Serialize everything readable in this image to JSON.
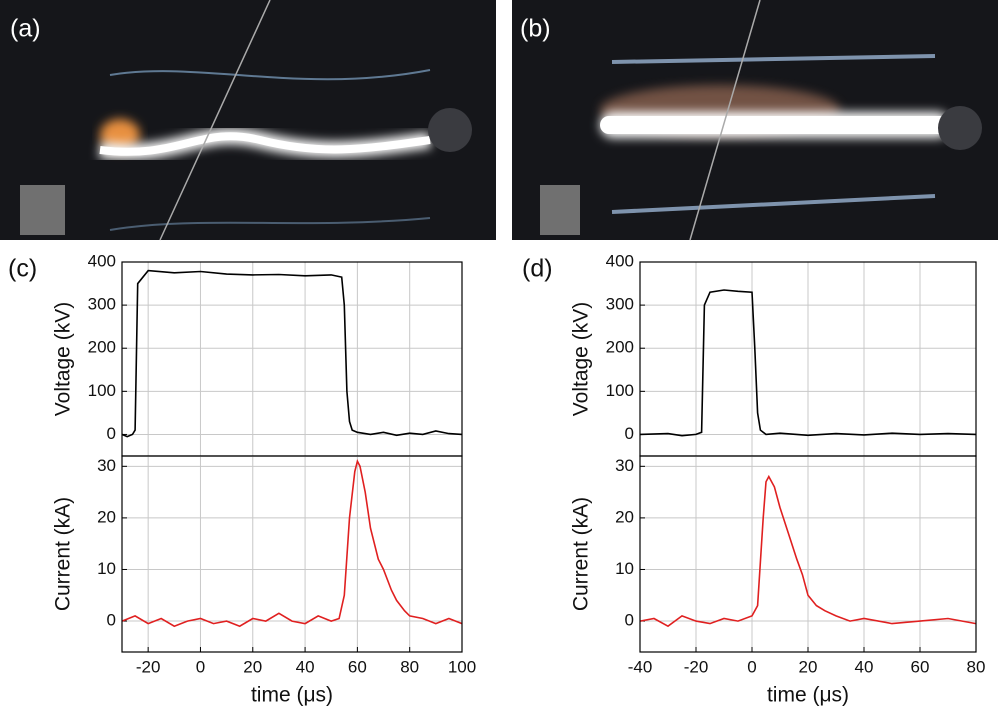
{
  "photos": [
    {
      "label": "(a)"
    },
    {
      "label": "(b)"
    }
  ],
  "chart_data": [
    {
      "type": "line",
      "panel_label": "(c)",
      "x_label": "time (μs)",
      "xlim": [
        -30,
        100
      ],
      "xticks": [
        -20,
        0,
        20,
        40,
        60,
        80,
        100
      ],
      "grid": true,
      "subplots": [
        {
          "y_label": "Voltage (kV)",
          "ylim": [
            -50,
            400
          ],
          "yticks": [
            0,
            100,
            200,
            300,
            400
          ],
          "series": [
            {
              "color": "#000000",
              "x": [
                -30,
                -28,
                -26,
                -25,
                -24,
                -20,
                -10,
                0,
                10,
                20,
                30,
                40,
                50,
                54,
                55,
                56,
                57,
                58,
                60,
                65,
                70,
                75,
                80,
                85,
                90,
                95,
                100
              ],
              "values": [
                0,
                -5,
                0,
                10,
                350,
                380,
                375,
                378,
                372,
                370,
                371,
                368,
                370,
                365,
                300,
                100,
                30,
                10,
                5,
                0,
                5,
                -2,
                3,
                0,
                8,
                2,
                0
              ]
            }
          ]
        },
        {
          "y_label": "Current (kA)",
          "ylim": [
            -6,
            32
          ],
          "yticks": [
            0,
            10,
            20,
            30
          ],
          "series": [
            {
              "color": "#e02020",
              "x": [
                -30,
                -25,
                -20,
                -15,
                -10,
                -5,
                0,
                5,
                10,
                15,
                20,
                25,
                30,
                35,
                40,
                45,
                50,
                53,
                55,
                57,
                59,
                60,
                61,
                63,
                65,
                68,
                70,
                73,
                75,
                78,
                80,
                85,
                90,
                95,
                100
              ],
              "values": [
                0,
                1,
                -0.5,
                0.5,
                -1,
                0,
                0.5,
                -0.5,
                0,
                -1,
                0.5,
                0,
                1.5,
                0,
                -0.5,
                1,
                0,
                0.5,
                5,
                20,
                29,
                31,
                30,
                25,
                18,
                12,
                10,
                6,
                4,
                2,
                1,
                0.5,
                -0.5,
                0.5,
                -0.5
              ]
            }
          ]
        }
      ]
    },
    {
      "type": "line",
      "panel_label": "(d)",
      "x_label": "time (μs)",
      "xlim": [
        -40,
        80
      ],
      "xticks": [
        -40,
        -20,
        0,
        20,
        40,
        60,
        80
      ],
      "grid": true,
      "subplots": [
        {
          "y_label": "Voltage (kV)",
          "ylim": [
            -50,
            400
          ],
          "yticks": [
            0,
            100,
            200,
            300,
            400
          ],
          "series": [
            {
              "color": "#000000",
              "x": [
                -40,
                -30,
                -25,
                -20,
                -18,
                -17,
                -15,
                -10,
                -5,
                0,
                1,
                2,
                3,
                5,
                10,
                20,
                30,
                40,
                50,
                60,
                70,
                80
              ],
              "values": [
                0,
                2,
                -3,
                0,
                5,
                300,
                330,
                335,
                332,
                330,
                200,
                50,
                10,
                0,
                3,
                -2,
                2,
                -1,
                3,
                0,
                2,
                0
              ]
            }
          ]
        },
        {
          "y_label": "Current (kA)",
          "ylim": [
            -6,
            32
          ],
          "yticks": [
            0,
            10,
            20,
            30
          ],
          "series": [
            {
              "color": "#e02020",
              "x": [
                -40,
                -35,
                -30,
                -25,
                -20,
                -15,
                -10,
                -5,
                0,
                2,
                4,
                5,
                6,
                8,
                10,
                13,
                16,
                18,
                20,
                23,
                26,
                30,
                35,
                40,
                50,
                60,
                70,
                80
              ],
              "values": [
                0,
                0.5,
                -1,
                1,
                0,
                -0.5,
                0.5,
                0,
                1,
                3,
                20,
                27,
                28,
                26,
                22,
                17,
                12,
                9,
                5,
                3,
                2,
                1,
                0,
                0.5,
                -0.5,
                0,
                0.5,
                -0.5
              ]
            }
          ]
        }
      ]
    }
  ]
}
